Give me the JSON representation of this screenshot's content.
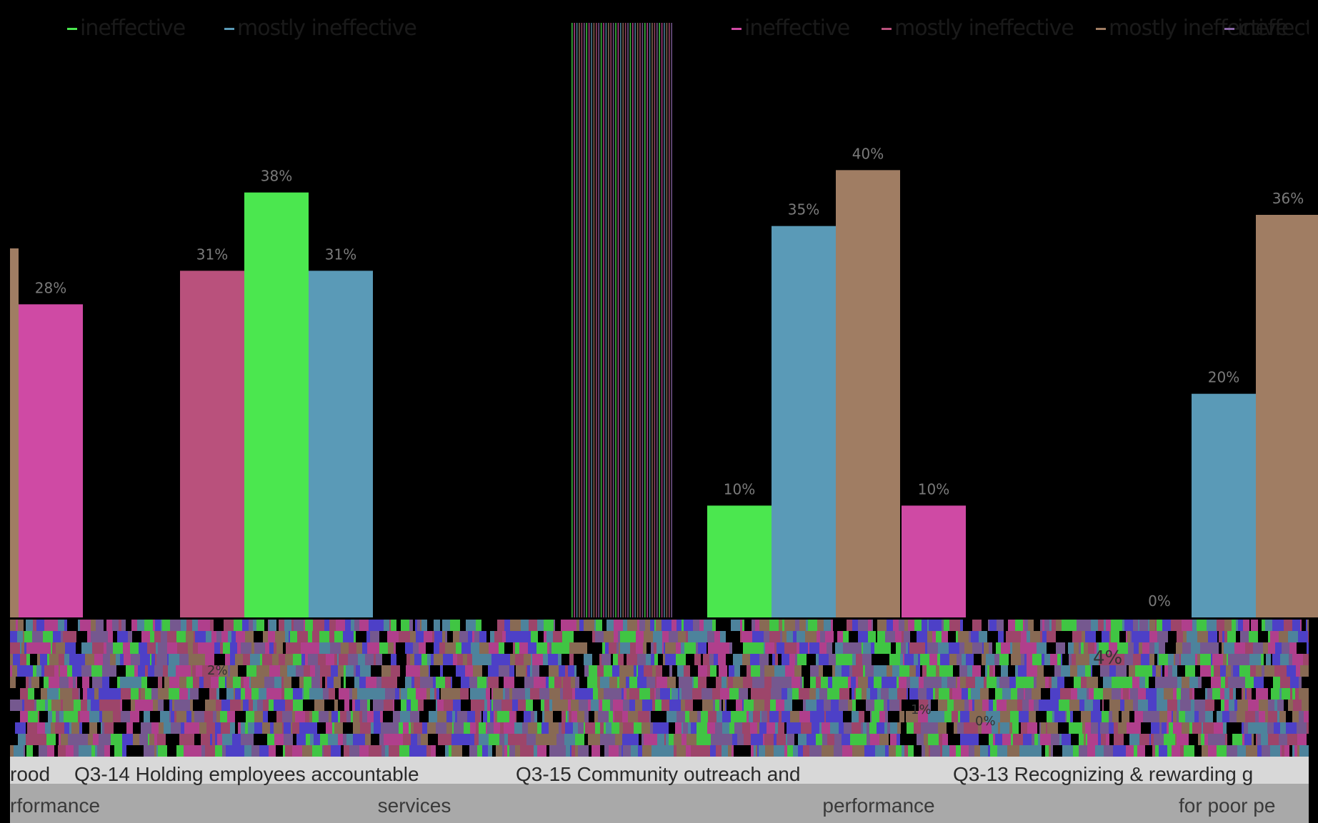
{
  "chart_data": {
    "type": "bar",
    "title": "",
    "xlabel": "",
    "ylabel": "",
    "ylim": [
      0,
      45
    ],
    "grid": false,
    "legend_position": "top",
    "legend": [
      "ineffective",
      "mostly ineffective",
      "ineffective",
      "mostly ineffective",
      "mostly ineffective",
      "ineffective"
    ],
    "category_lines": [
      [
        "rood",
        ""
      ],
      [
        "Q3-14 Holding employees accountable",
        "rformance"
      ],
      [
        "Q3-15 Community outreach and",
        "services"
      ],
      [
        "Q3-13 Recognizing & rewarding g",
        "performance"
      ],
      [
        "",
        "for poor pe"
      ]
    ],
    "bars": [
      {
        "group": 0,
        "series": "brown",
        "value": 33,
        "label": ""
      },
      {
        "group": 0,
        "series": "pink",
        "value": 28,
        "label": "28%"
      },
      {
        "group": 1,
        "series": "rose",
        "value": 31,
        "label": "31%"
      },
      {
        "group": 1,
        "series": "green",
        "value": 38,
        "label": "38%"
      },
      {
        "group": 1,
        "series": "blue",
        "value": 31,
        "label": "31%"
      },
      {
        "group": 2,
        "series": "green",
        "value": 10,
        "label": "10%"
      },
      {
        "group": 2,
        "series": "blue",
        "value": 35,
        "label": "35%"
      },
      {
        "group": 2,
        "series": "brown",
        "value": 40,
        "label": "40%"
      },
      {
        "group": 2,
        "series": "pink",
        "value": 10,
        "label": "10%"
      },
      {
        "group": 3,
        "series": "pink",
        "value": 0,
        "label": "0%"
      },
      {
        "group": 3,
        "series": "blue",
        "value": 20,
        "label": "20%"
      },
      {
        "group": 3,
        "series": "brown",
        "value": 36,
        "label": "36%"
      }
    ],
    "lower_labels": [
      "2%",
      "1%",
      "0%",
      "4%"
    ],
    "colors": {
      "brown": "#a07d63",
      "pink": "#cf4aa4",
      "rose": "#b9517c",
      "green": "#4be74f",
      "blue": "#5a9ab7",
      "purple": "#8a67a8",
      "violet": "#5a4bea"
    }
  }
}
